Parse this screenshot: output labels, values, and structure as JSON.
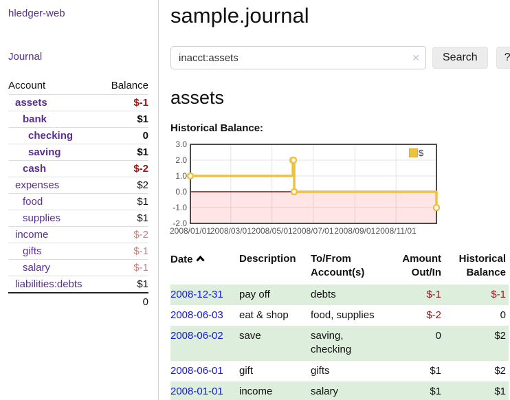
{
  "app": {
    "brand": "hledger-web",
    "nav_journal": "Journal"
  },
  "sidebar": {
    "col_account": "Account",
    "col_balance": "Balance",
    "accounts": [
      {
        "name": "assets",
        "balance": "$-1",
        "depth": 1,
        "bold": true,
        "neg": "strong"
      },
      {
        "name": "bank",
        "balance": "$1",
        "depth": 2,
        "bold": true,
        "neg": "none"
      },
      {
        "name": "checking",
        "balance": "0",
        "depth": 3,
        "bold": true,
        "neg": "none"
      },
      {
        "name": "saving",
        "balance": "$1",
        "depth": 3,
        "bold": true,
        "neg": "none"
      },
      {
        "name": "cash",
        "balance": "$-2",
        "depth": 2,
        "bold": true,
        "neg": "strong"
      },
      {
        "name": "expenses",
        "balance": "$2",
        "depth": 1,
        "bold": false,
        "neg": "none"
      },
      {
        "name": "food",
        "balance": "$1",
        "depth": 2,
        "bold": false,
        "neg": "none"
      },
      {
        "name": "supplies",
        "balance": "$1",
        "depth": 2,
        "bold": false,
        "neg": "none"
      },
      {
        "name": "income",
        "balance": "$-2",
        "depth": 1,
        "bold": false,
        "neg": "weak"
      },
      {
        "name": "gifts",
        "balance": "$-1",
        "depth": 2,
        "bold": false,
        "neg": "weak"
      },
      {
        "name": "salary",
        "balance": "$-1",
        "depth": 2,
        "bold": false,
        "neg": "weak"
      },
      {
        "name": "liabilities:debts",
        "balance": "$1",
        "depth": 1,
        "bold": false,
        "neg": "none"
      }
    ],
    "total": "0"
  },
  "main": {
    "title": "sample.journal",
    "search": {
      "value": "inacct:assets",
      "clear_icon": "✕",
      "button": "Search",
      "help": "?"
    },
    "account_heading": "assets",
    "chart_label": "Historical Balance:",
    "register": {
      "headers": {
        "date": "Date",
        "description": "Description",
        "tofrom": "To/From Account(s)",
        "amount": "Amount Out/In",
        "balance": "Historical Balance"
      },
      "rows": [
        {
          "date": "2008-12-31",
          "description": "pay off",
          "tofrom": "debts",
          "amount": "$-1",
          "amount_neg": true,
          "balance": "$-1",
          "balance_neg": true,
          "stripe": true
        },
        {
          "date": "2008-06-03",
          "description": "eat & shop",
          "tofrom": "food, supplies",
          "amount": "$-2",
          "amount_neg": true,
          "balance": "0",
          "balance_neg": false,
          "stripe": false
        },
        {
          "date": "2008-06-02",
          "description": "save",
          "tofrom": "saving, checking",
          "amount": "0",
          "amount_neg": false,
          "balance": "$2",
          "balance_neg": false,
          "stripe": true
        },
        {
          "date": "2008-06-01",
          "description": "gift",
          "tofrom": "gifts",
          "amount": "$1",
          "amount_neg": false,
          "balance": "$2",
          "balance_neg": false,
          "stripe": false
        },
        {
          "date": "2008-01-01",
          "description": "income",
          "tofrom": "salary",
          "amount": "$1",
          "amount_neg": false,
          "balance": "$1",
          "balance_neg": false,
          "stripe": true
        }
      ]
    }
  },
  "chart_data": {
    "type": "line",
    "title": "Historical Balance:",
    "legend": "$",
    "legend_position": "top-right",
    "step": true,
    "series": [
      {
        "name": "$",
        "color": "#edc240",
        "points": [
          [
            "2008-01-01",
            1
          ],
          [
            "2008-06-01",
            2
          ],
          [
            "2008-06-02",
            2
          ],
          [
            "2008-06-03",
            0
          ],
          [
            "2008-12-31",
            -1
          ]
        ]
      }
    ],
    "ylim": [
      -2,
      3
    ],
    "yticks": [
      "3.0",
      "2.0",
      "1.0",
      "0.0",
      "-1.0",
      "-2.0"
    ],
    "xticks": [
      "2008/01/01",
      "2008/03/01",
      "2008/05/01",
      "2008/07/01",
      "2008/09/01",
      "2008/11/01"
    ],
    "grid": true,
    "border_color": "#4a4a4a",
    "gridline_color": "#e3e3e3",
    "negative_region_fill": "rgba(255,0,0,0.10)",
    "zero_line_color": "#8b0f0f",
    "marker": {
      "fill": "#ffffff",
      "stroke": "#edc240"
    }
  }
}
